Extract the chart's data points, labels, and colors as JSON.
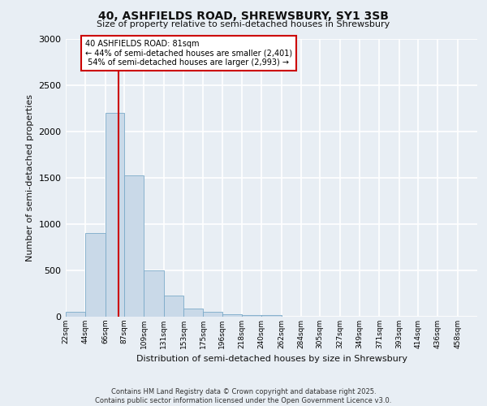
{
  "title": "40, ASHFIELDS ROAD, SHREWSBURY, SY1 3SB",
  "subtitle": "Size of property relative to semi-detached houses in Shrewsbury",
  "xlabel": "Distribution of semi-detached houses by size in Shrewsbury",
  "ylabel": "Number of semi-detached properties",
  "property_size": 81,
  "property_label": "40 ASHFIELDS ROAD: 81sqm",
  "pct_smaller": 44,
  "pct_larger": 54,
  "n_smaller": 2401,
  "n_larger": 2993,
  "bin_labels": [
    "22sqm",
    "44sqm",
    "66sqm",
    "87sqm",
    "109sqm",
    "131sqm",
    "153sqm",
    "175sqm",
    "196sqm",
    "218sqm",
    "240sqm",
    "262sqm",
    "284sqm",
    "305sqm",
    "327sqm",
    "349sqm",
    "371sqm",
    "393sqm",
    "414sqm",
    "436sqm",
    "458sqm"
  ],
  "bin_edges": [
    22,
    44,
    66,
    87,
    109,
    131,
    153,
    175,
    196,
    218,
    240,
    262,
    284,
    305,
    327,
    349,
    371,
    393,
    414,
    436,
    458
  ],
  "bar_heights": [
    50,
    900,
    2200,
    1520,
    500,
    230,
    90,
    50,
    30,
    20,
    15,
    0,
    0,
    0,
    0,
    0,
    0,
    0,
    0,
    0,
    0
  ],
  "bar_color": "#c9d9e8",
  "bar_edge_color": "#7baac9",
  "vline_color": "#cc0000",
  "vline_x": 81,
  "background_color": "#e8eef4",
  "plot_bg_color": "#e8eef4",
  "grid_color": "#ffffff",
  "annotation_box_color": "#cc0000",
  "ylim": [
    0,
    3000
  ],
  "yticks": [
    0,
    500,
    1000,
    1500,
    2000,
    2500,
    3000
  ],
  "footer_line1": "Contains HM Land Registry data © Crown copyright and database right 2025.",
  "footer_line2": "Contains public sector information licensed under the Open Government Licence v3.0."
}
